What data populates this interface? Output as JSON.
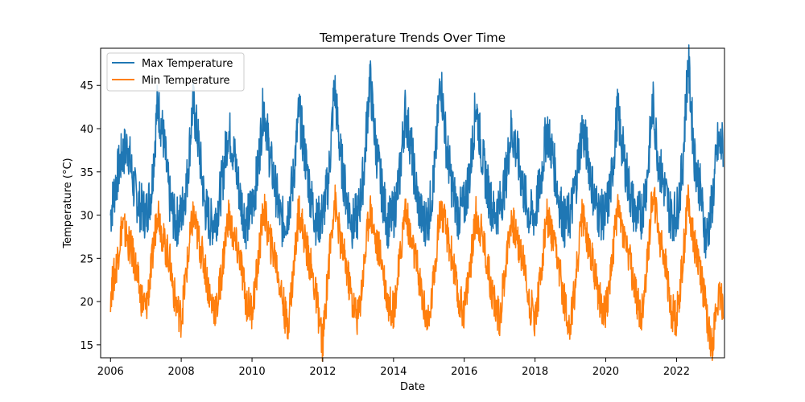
{
  "chart_data": {
    "type": "line",
    "title": "Temperature Trends Over Time",
    "xlabel": "Date",
    "ylabel": "Temperature (°C)",
    "xlim": [
      "2005-09-21",
      "2023-05-11"
    ],
    "ylim": [
      13.5,
      49.3
    ],
    "x_ticks": [
      "2006",
      "2008",
      "2010",
      "2012",
      "2014",
      "2016",
      "2018",
      "2020",
      "2022"
    ],
    "y_ticks": [
      15,
      20,
      25,
      30,
      35,
      40,
      45
    ],
    "grid": false,
    "legend_position": "top-left",
    "series": [
      {
        "name": "Max Temperature",
        "color": "#1f77b4",
        "x": [
          "2006-01",
          "2006-03",
          "2006-05",
          "2006-07",
          "2006-09",
          "2006-11",
          "2007-01",
          "2007-03",
          "2007-05",
          "2007-07",
          "2007-09",
          "2007-11",
          "2008-01",
          "2008-03",
          "2008-05",
          "2008-07",
          "2008-09",
          "2008-11",
          "2009-01",
          "2009-03",
          "2009-05",
          "2009-07",
          "2009-09",
          "2009-11",
          "2010-01",
          "2010-03",
          "2010-05",
          "2010-07",
          "2010-09",
          "2010-11",
          "2011-01",
          "2011-03",
          "2011-05",
          "2011-07",
          "2011-09",
          "2011-11",
          "2012-01",
          "2012-03",
          "2012-05",
          "2012-07",
          "2012-09",
          "2012-11",
          "2013-01",
          "2013-03",
          "2013-05",
          "2013-07",
          "2013-09",
          "2013-11",
          "2014-01",
          "2014-03",
          "2014-05",
          "2014-07",
          "2014-09",
          "2014-11",
          "2015-01",
          "2015-03",
          "2015-05",
          "2015-07",
          "2015-09",
          "2015-11",
          "2016-01",
          "2016-03",
          "2016-05",
          "2016-07",
          "2016-09",
          "2016-11",
          "2017-01",
          "2017-03",
          "2017-05",
          "2017-07",
          "2017-09",
          "2017-11",
          "2018-01",
          "2018-03",
          "2018-05",
          "2018-07",
          "2018-09",
          "2018-11",
          "2019-01",
          "2019-03",
          "2019-05",
          "2019-07",
          "2019-09",
          "2019-11",
          "2020-01",
          "2020-03",
          "2020-05",
          "2020-07",
          "2020-09",
          "2020-11",
          "2021-01",
          "2021-03",
          "2021-05",
          "2021-07",
          "2021-09",
          "2021-11",
          "2022-01",
          "2022-03",
          "2022-05",
          "2022-07",
          "2022-09",
          "2022-11",
          "2023-01",
          "2023-03"
        ],
        "values": [
          30,
          34,
          37,
          38,
          33,
          31,
          30,
          33,
          43,
          39,
          32,
          29,
          30,
          34,
          43,
          38,
          31,
          29,
          30,
          34,
          40,
          37,
          32,
          29,
          31,
          35,
          43,
          37,
          33,
          29,
          30,
          34,
          42,
          37,
          32,
          29,
          30,
          34,
          45,
          37,
          32,
          29,
          30,
          35,
          46,
          38,
          33,
          29,
          30,
          34,
          42,
          38,
          32,
          29,
          30,
          35,
          46,
          38,
          33,
          30,
          31,
          35,
          43,
          37,
          33,
          30,
          31,
          34,
          40,
          37,
          33,
          30,
          30,
          34,
          40,
          37,
          32,
          29,
          30,
          34,
          40,
          37,
          32,
          30,
          30,
          34,
          42,
          37,
          33,
          30,
          30,
          34,
          43,
          36,
          33,
          30,
          30,
          35,
          48,
          37,
          33,
          27,
          31,
          38
        ]
      },
      {
        "name": "Min Temperature",
        "color": "#ff7f0e",
        "x": [
          "2006-01",
          "2006-03",
          "2006-05",
          "2006-07",
          "2006-09",
          "2006-11",
          "2007-01",
          "2007-03",
          "2007-05",
          "2007-07",
          "2007-09",
          "2007-11",
          "2008-01",
          "2008-03",
          "2008-05",
          "2008-07",
          "2008-09",
          "2008-11",
          "2009-01",
          "2009-03",
          "2009-05",
          "2009-07",
          "2009-09",
          "2009-11",
          "2010-01",
          "2010-03",
          "2010-05",
          "2010-07",
          "2010-09",
          "2010-11",
          "2011-01",
          "2011-03",
          "2011-05",
          "2011-07",
          "2011-09",
          "2011-11",
          "2012-01",
          "2012-03",
          "2012-05",
          "2012-07",
          "2012-09",
          "2012-11",
          "2013-01",
          "2013-03",
          "2013-05",
          "2013-07",
          "2013-09",
          "2013-11",
          "2014-01",
          "2014-03",
          "2014-05",
          "2014-07",
          "2014-09",
          "2014-11",
          "2015-01",
          "2015-03",
          "2015-05",
          "2015-07",
          "2015-09",
          "2015-11",
          "2016-01",
          "2016-03",
          "2016-05",
          "2016-07",
          "2016-09",
          "2016-11",
          "2017-01",
          "2017-03",
          "2017-05",
          "2017-07",
          "2017-09",
          "2017-11",
          "2018-01",
          "2018-03",
          "2018-05",
          "2018-07",
          "2018-09",
          "2018-11",
          "2019-01",
          "2019-03",
          "2019-05",
          "2019-07",
          "2019-09",
          "2019-11",
          "2020-01",
          "2020-03",
          "2020-05",
          "2020-07",
          "2020-09",
          "2020-11",
          "2021-01",
          "2021-03",
          "2021-05",
          "2021-07",
          "2021-09",
          "2021-11",
          "2022-01",
          "2022-03",
          "2022-05",
          "2022-07",
          "2022-09",
          "2022-11",
          "2023-01",
          "2023-03"
        ],
        "values": [
          21,
          24,
          29,
          27,
          25,
          21,
          19,
          24,
          31,
          27,
          25,
          20,
          18,
          24,
          30,
          27,
          24,
          20,
          19,
          24,
          30,
          27,
          25,
          20,
          19,
          24,
          31,
          27,
          25,
          21,
          17,
          23,
          31,
          27,
          24,
          20,
          15,
          24,
          32,
          27,
          24,
          20,
          18,
          24,
          31,
          27,
          25,
          20,
          19,
          24,
          31,
          27,
          24,
          20,
          17,
          24,
          31,
          28,
          25,
          20,
          19,
          24,
          30,
          28,
          24,
          20,
          18,
          24,
          30,
          27,
          25,
          20,
          18,
          23,
          30,
          27,
          24,
          20,
          17,
          23,
          30,
          27,
          24,
          20,
          19,
          24,
          31,
          28,
          25,
          21,
          18,
          24,
          33,
          28,
          25,
          19,
          18,
          24,
          32,
          27,
          24,
          19,
          15,
          20
        ]
      }
    ]
  }
}
